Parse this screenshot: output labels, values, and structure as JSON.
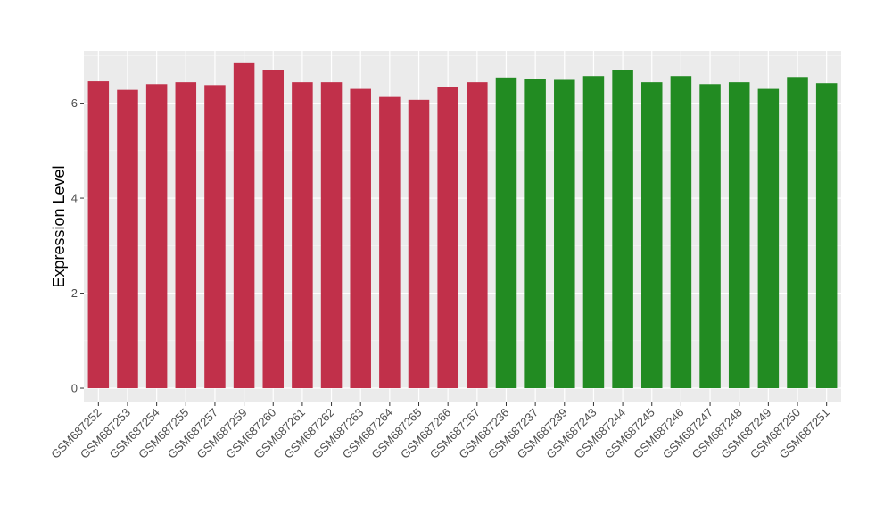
{
  "chart_data": {
    "type": "bar",
    "title": "",
    "xlabel": "",
    "ylabel": "Expression Level",
    "ylim": [
      -0.3,
      7.1
    ],
    "yticks": [
      0,
      2,
      4,
      6
    ],
    "grid": true,
    "categories": [
      "GSM687252",
      "GSM687253",
      "GSM687254",
      "GSM687255",
      "GSM687257",
      "GSM687259",
      "GSM687260",
      "GSM687261",
      "GSM687262",
      "GSM687263",
      "GSM687264",
      "GSM687265",
      "GSM687266",
      "GSM687267",
      "GSM687236",
      "GSM687237",
      "GSM687239",
      "GSM687243",
      "GSM687244",
      "GSM687245",
      "GSM687246",
      "GSM687247",
      "GSM687248",
      "GSM687249",
      "GSM687250",
      "GSM687251"
    ],
    "values": [
      6.46,
      6.28,
      6.4,
      6.44,
      6.38,
      6.84,
      6.69,
      6.44,
      6.44,
      6.3,
      6.13,
      6.07,
      6.34,
      6.44,
      6.54,
      6.51,
      6.49,
      6.57,
      6.7,
      6.44,
      6.57,
      6.4,
      6.44,
      6.3,
      6.55,
      6.42
    ],
    "groups": [
      "A",
      "A",
      "A",
      "A",
      "A",
      "A",
      "A",
      "A",
      "A",
      "A",
      "A",
      "A",
      "A",
      "A",
      "B",
      "B",
      "B",
      "B",
      "B",
      "B",
      "B",
      "B",
      "B",
      "B",
      "B",
      "B"
    ],
    "colors": {
      "A": "#c1304a",
      "B": "#228b22",
      "panel_background": "#ebebeb",
      "grid_major": "#ffffff",
      "grid_minor": "#f5f5f5",
      "tick_text": "#4d4d4d"
    }
  }
}
